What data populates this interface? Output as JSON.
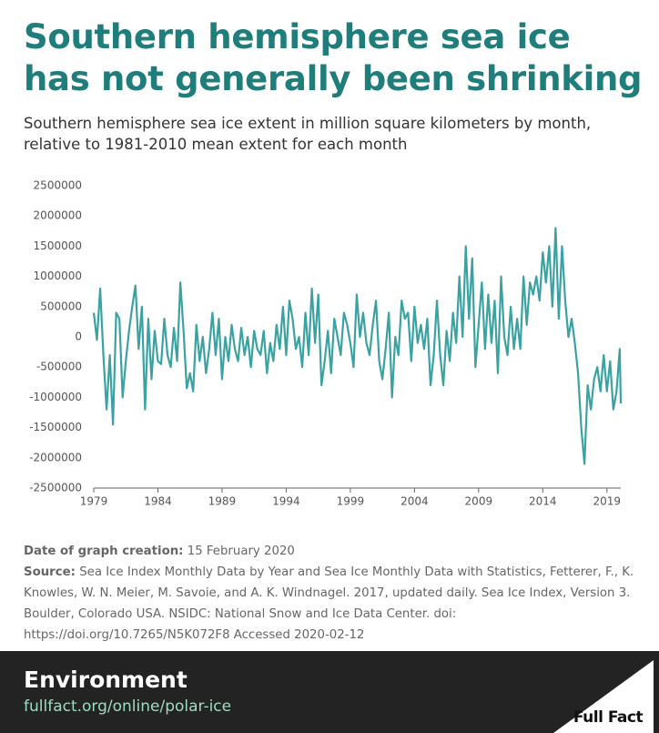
{
  "chart_data": {
    "type": "line",
    "title": "Southern hemisphere sea ice has not generally been shrinking",
    "subtitle": "Southern hemisphere sea ice extent in million square kilometers by month, relative to 1981-2010 mean extent for each month",
    "color": "#3aa3a1",
    "xlim": [
      1979,
      2020.08
    ],
    "xticks": [
      1979,
      1984,
      1989,
      1994,
      1999,
      2004,
      2009,
      2014,
      2019
    ],
    "ylim": [
      -2500000,
      2500000
    ],
    "yticks": [
      2500000,
      2000000,
      1500000,
      1000000,
      500000,
      0,
      -500000,
      -1000000,
      -1500000,
      -2000000,
      -2500000
    ],
    "x": [
      1979,
      1979.25,
      1979.5,
      1979.75,
      1980,
      1980.25,
      1980.5,
      1980.75,
      1981,
      1981.25,
      1981.5,
      1981.75,
      1982,
      1982.25,
      1982.5,
      1982.75,
      1983,
      1983.25,
      1983.5,
      1983.75,
      1984,
      1984.25,
      1984.5,
      1984.75,
      1985,
      1985.25,
      1985.5,
      1985.75,
      1986,
      1986.25,
      1986.5,
      1986.75,
      1987,
      1987.25,
      1987.5,
      1987.75,
      1988,
      1988.25,
      1988.5,
      1988.75,
      1989,
      1989.25,
      1989.5,
      1989.75,
      1990,
      1990.25,
      1990.5,
      1990.75,
      1991,
      1991.25,
      1991.5,
      1991.75,
      1992,
      1992.25,
      1992.5,
      1992.75,
      1993,
      1993.25,
      1993.5,
      1993.75,
      1994,
      1994.25,
      1994.5,
      1994.75,
      1995,
      1995.25,
      1995.5,
      1995.75,
      1996,
      1996.25,
      1996.5,
      1996.75,
      1997,
      1997.25,
      1997.5,
      1997.75,
      1998,
      1998.25,
      1998.5,
      1998.75,
      1999,
      1999.25,
      1999.5,
      1999.75,
      2000,
      2000.25,
      2000.5,
      2000.75,
      2001,
      2001.25,
      2001.5,
      2001.75,
      2002,
      2002.25,
      2002.5,
      2002.75,
      2003,
      2003.25,
      2003.5,
      2003.75,
      2004,
      2004.25,
      2004.5,
      2004.75,
      2005,
      2005.25,
      2005.5,
      2005.75,
      2006,
      2006.25,
      2006.5,
      2006.75,
      2007,
      2007.25,
      2007.5,
      2007.75,
      2008,
      2008.25,
      2008.5,
      2008.75,
      2009,
      2009.25,
      2009.5,
      2009.75,
      2010,
      2010.25,
      2010.5,
      2010.75,
      2011,
      2011.25,
      2011.5,
      2011.75,
      2012,
      2012.25,
      2012.5,
      2012.75,
      2013,
      2013.25,
      2013.5,
      2013.75,
      2014,
      2014.25,
      2014.5,
      2014.75,
      2015,
      2015.25,
      2015.5,
      2015.75,
      2016,
      2016.25,
      2016.5,
      2016.75,
      2017,
      2017.25,
      2017.5,
      2017.75,
      2018,
      2018.25,
      2018.5,
      2018.75,
      2019,
      2019.25,
      2019.5,
      2019.75,
      2020,
      2020.08
    ],
    "values": [
      400000,
      -50000,
      800000,
      -300000,
      -1200000,
      -300000,
      -1450000,
      400000,
      300000,
      -1000000,
      -400000,
      100000,
      500000,
      850000,
      -200000,
      500000,
      -1200000,
      300000,
      -700000,
      100000,
      -400000,
      -450000,
      300000,
      -300000,
      -500000,
      150000,
      -400000,
      900000,
      100000,
      -850000,
      -600000,
      -900000,
      200000,
      -400000,
      0,
      -600000,
      -200000,
      400000,
      -300000,
      300000,
      -700000,
      0,
      -400000,
      200000,
      -200000,
      -400000,
      150000,
      -300000,
      0,
      -500000,
      100000,
      -200000,
      -300000,
      100000,
      -600000,
      -100000,
      -400000,
      200000,
      -200000,
      500000,
      -300000,
      600000,
      300000,
      -200000,
      0,
      -500000,
      400000,
      -300000,
      800000,
      -100000,
      700000,
      -800000,
      -400000,
      100000,
      -600000,
      300000,
      0,
      -300000,
      400000,
      200000,
      -100000,
      -500000,
      700000,
      0,
      400000,
      -100000,
      -300000,
      200000,
      600000,
      -400000,
      -700000,
      -200000,
      400000,
      -1000000,
      0,
      -300000,
      600000,
      300000,
      400000,
      -400000,
      500000,
      -100000,
      200000,
      -200000,
      300000,
      -800000,
      -300000,
      600000,
      -300000,
      -800000,
      100000,
      -400000,
      400000,
      -100000,
      1000000,
      0,
      1500000,
      300000,
      1300000,
      -500000,
      200000,
      900000,
      -200000,
      700000,
      -100000,
      600000,
      -600000,
      1000000,
      0,
      -300000,
      500000,
      -200000,
      300000,
      -200000,
      1000000,
      200000,
      900000,
      700000,
      1000000,
      600000,
      1400000,
      900000,
      1500000,
      500000,
      1800000,
      300000,
      1500000,
      600000,
      0,
      300000,
      -100000,
      -600000,
      -1500000,
      -2100000,
      -800000,
      -1200000,
      -700000,
      -500000,
      -900000,
      -300000,
      -900000,
      -400000,
      -1200000,
      -900000,
      -200000,
      -1100000
    ]
  },
  "footer": {
    "date_label": "Date of graph creation:",
    "date": "15 February 2020",
    "source_label": "Source:",
    "source": "Sea Ice Index Monthly Data by Year and Sea Ice Monthly Data with Statistics, Fetterer, F., K. Knowles, W. N. Meier, M. Savoie, and A. K. Windnagel. 2017, updated daily. Sea Ice Index, Version 3. Boulder, Colorado USA. NSIDC: National Snow and Ice Data Center. doi: https://doi.org/10.7265/N5K072F8 Accessed 2020-02-12",
    "section": "Environment",
    "url": "fullfact.org/online/polar-ice",
    "logo": "Full Fact"
  }
}
